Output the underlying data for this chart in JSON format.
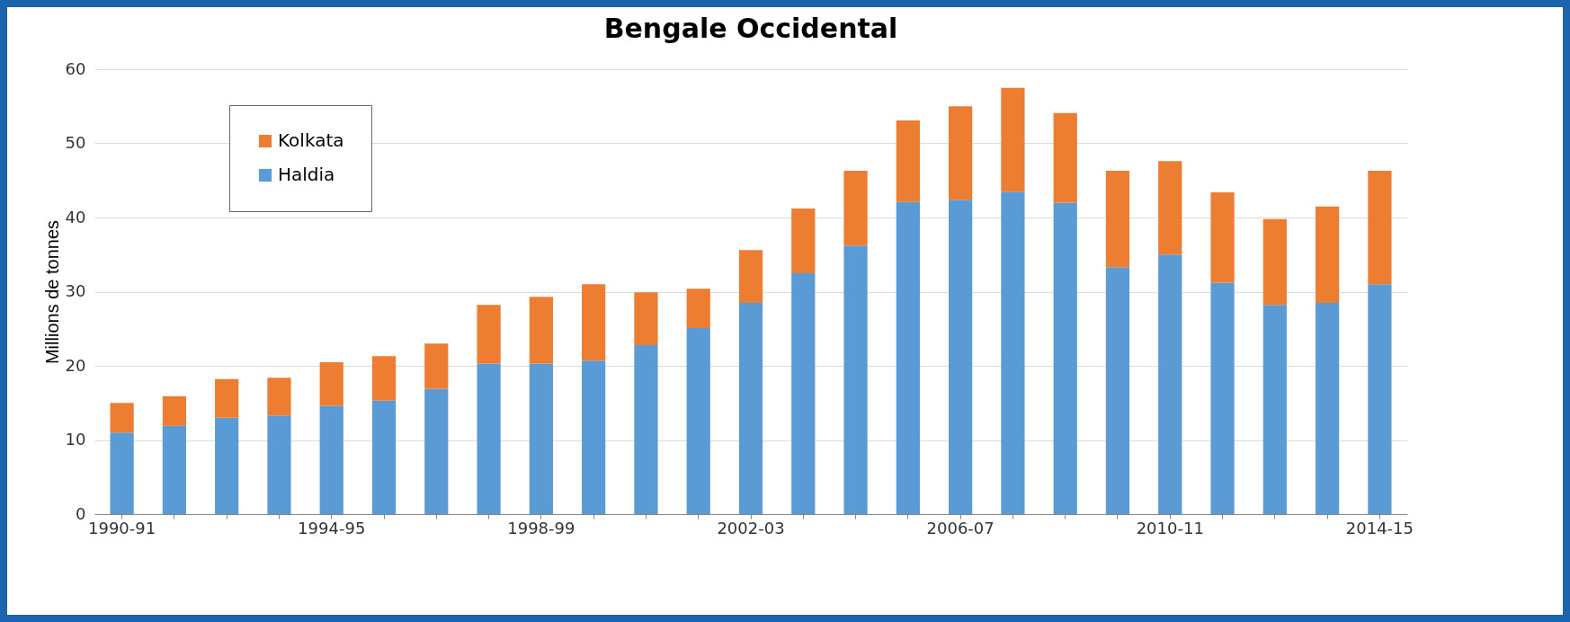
{
  "chart_data": {
    "type": "bar",
    "title": "Bengale Occidental",
    "ylabel": "Millions de tonnes",
    "stacked": true,
    "categories": [
      "1990-91",
      null,
      null,
      null,
      "1994-95",
      null,
      null,
      null,
      "1998-99",
      null,
      null,
      null,
      "2002-03",
      null,
      null,
      null,
      "2006-07",
      null,
      null,
      null,
      "2010-11",
      null,
      null,
      null,
      "2014-15"
    ],
    "series": [
      {
        "name": "Haldia",
        "color": "#5b9bd5",
        "values": [
          11.0,
          11.9,
          13.0,
          13.3,
          14.6,
          15.3,
          16.9,
          20.3,
          20.3,
          20.7,
          22.8,
          25.1,
          28.5,
          32.5,
          36.2,
          42.1,
          42.4,
          43.5,
          42.0,
          33.3,
          35.0,
          31.2,
          28.2,
          28.5,
          31.0
        ]
      },
      {
        "name": "Kolkata",
        "color": "#ed7d31",
        "values": [
          4.0,
          4.0,
          5.2,
          5.1,
          5.9,
          6.0,
          6.1,
          7.9,
          9.0,
          10.3,
          7.1,
          5.3,
          7.1,
          8.7,
          10.1,
          11.0,
          12.6,
          14.0,
          12.1,
          13.0,
          12.6,
          12.2,
          11.6,
          13.0,
          15.3
        ]
      }
    ],
    "ylim": [
      0,
      60
    ],
    "yticks": [
      0,
      10,
      20,
      30,
      40,
      50,
      60
    ],
    "grid": "y",
    "legend": "top left"
  }
}
